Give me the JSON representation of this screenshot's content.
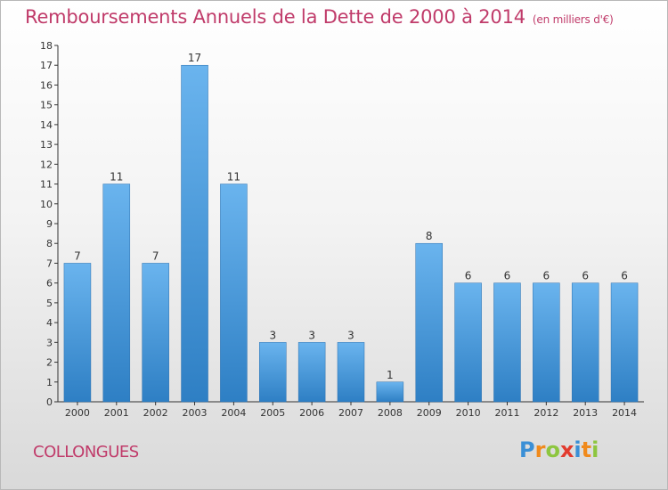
{
  "title": "Remboursements Annuels de la Dette de 2000 à 2014",
  "unit_note": "(en milliers d'€)",
  "commune": "COLLONGUES",
  "logo": {
    "text": "Proxiti",
    "letters": [
      "P",
      "r",
      "o",
      "x",
      "i",
      "t",
      "i"
    ],
    "colors": [
      "#3a8fd6",
      "#f08a1c",
      "#8dc63f",
      "#e23b2e",
      "#3a8fd6",
      "#f08a1c",
      "#8dc63f"
    ]
  },
  "colors": {
    "bar_top": "#6ab4ee",
    "bar_bottom": "#2e7fc4",
    "title": "#c03b6a",
    "axis": "#333333"
  },
  "chart_data": {
    "type": "bar",
    "categories": [
      "2000",
      "2001",
      "2002",
      "2003",
      "2004",
      "2005",
      "2006",
      "2007",
      "2008",
      "2009",
      "2010",
      "2011",
      "2012",
      "2013",
      "2014"
    ],
    "values": [
      7,
      11,
      7,
      17,
      11,
      3,
      3,
      3,
      1,
      8,
      6,
      6,
      6,
      6,
      6
    ],
    "yticks": [
      0,
      1,
      2,
      3,
      4,
      5,
      6,
      7,
      8,
      9,
      10,
      11,
      12,
      13,
      14,
      15,
      16,
      17,
      18
    ],
    "ylim": [
      0,
      18
    ],
    "grid": false,
    "data_labels": true
  }
}
